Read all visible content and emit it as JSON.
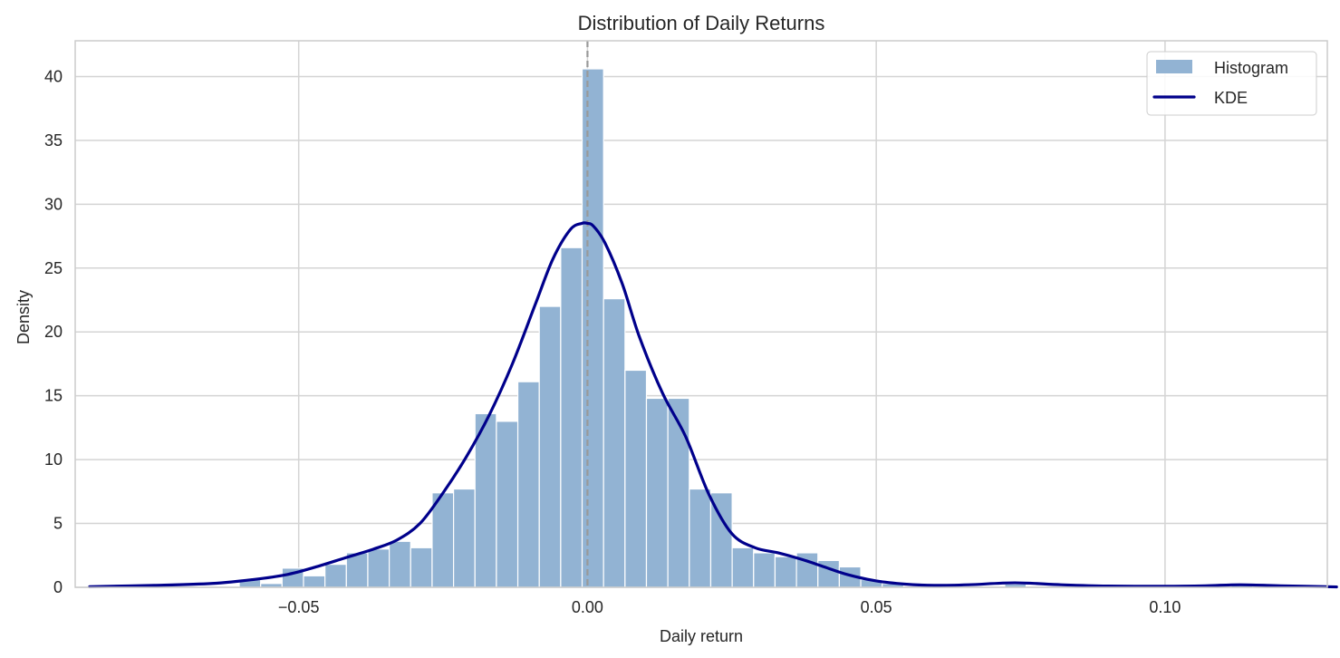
{
  "chart_data": {
    "type": "bar",
    "title": "Distribution of Daily Returns",
    "xlabel": "Daily return",
    "ylabel": "Density",
    "xlim": [
      -0.0887,
      0.1281
    ],
    "ylim": [
      0,
      42.8
    ],
    "xticks": [
      -0.05,
      0.0,
      0.05,
      0.1
    ],
    "xtick_labels": [
      "−0.05",
      "0.00",
      "0.05",
      "0.10"
    ],
    "yticks": [
      0,
      5,
      10,
      15,
      20,
      25,
      30,
      35,
      40
    ],
    "ytick_labels": [
      "0",
      "5",
      "10",
      "15",
      "20",
      "25",
      "30",
      "35",
      "40"
    ],
    "grid": true,
    "legend_position": "upper right",
    "reference_line": {
      "x": 0.0,
      "style": "dashed",
      "color": "#999999"
    },
    "histogram": {
      "name": "Histogram",
      "color": "#92b3d3",
      "bin_start": -0.0603,
      "bin_width": 0.003711,
      "values": [
        0.6,
        0.3,
        1.5,
        0.9,
        1.8,
        2.7,
        3.0,
        3.6,
        3.1,
        7.4,
        7.7,
        13.6,
        13.0,
        16.1,
        22.0,
        26.6,
        40.6,
        22.6,
        17.0,
        14.8,
        14.8,
        7.7,
        7.4,
        3.1,
        2.7,
        2.4,
        2.7,
        2.1,
        1.6,
        0.6,
        0.3
      ],
      "outliers": [
        {
          "x": 0.0741,
          "value": 0.25
        },
        {
          "x": 0.1133,
          "value": 0.25
        }
      ]
    },
    "kde": {
      "name": "KDE",
      "color": "#00008b",
      "x": [
        -0.0862,
        -0.075,
        -0.065,
        -0.058,
        -0.052,
        -0.047,
        -0.042,
        -0.037,
        -0.033,
        -0.029,
        -0.025,
        -0.021,
        -0.017,
        -0.013,
        -0.009,
        -0.006,
        -0.003,
        -0.001,
        0.0,
        0.001,
        0.003,
        0.006,
        0.009,
        0.013,
        0.017,
        0.021,
        0.025,
        0.029,
        0.033,
        0.037,
        0.041,
        0.045,
        0.05,
        0.055,
        0.06,
        0.066,
        0.074,
        0.082,
        0.09,
        0.1,
        0.107,
        0.113,
        0.12,
        0.1297
      ],
      "y": [
        0.05,
        0.15,
        0.3,
        0.6,
        1.0,
        1.6,
        2.3,
        3.0,
        3.7,
        5.0,
        7.4,
        10.2,
        13.5,
        17.5,
        22.2,
        25.7,
        28.0,
        28.5,
        28.5,
        28.3,
        27.0,
        23.8,
        19.6,
        15.2,
        11.8,
        7.3,
        4.2,
        3.1,
        2.7,
        2.2,
        1.6,
        1.0,
        0.5,
        0.25,
        0.15,
        0.2,
        0.35,
        0.2,
        0.1,
        0.08,
        0.12,
        0.2,
        0.12,
        0.03
      ]
    }
  },
  "legend": {
    "items": [
      {
        "label": "Histogram",
        "type": "patch",
        "color": "#92b3d3"
      },
      {
        "label": "KDE",
        "type": "line",
        "color": "#00008b"
      }
    ]
  }
}
